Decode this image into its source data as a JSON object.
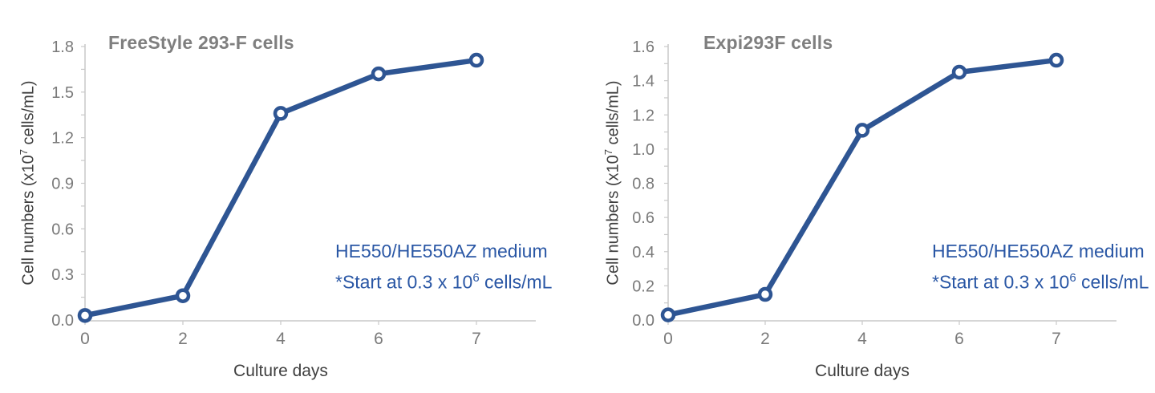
{
  "page": {
    "background": "#ffffff"
  },
  "colors": {
    "line_blue": "#2e5593",
    "marker_fill": "#ffffff",
    "annotation_blue": "#2a57a5",
    "title_gray": "#7f7f7f",
    "tick_label_gray": "#7a7a7a",
    "axis_text_dark": "#3f3f3f",
    "axis_line_gray": "#c9c9c9"
  },
  "chart_data": [
    {
      "type": "line",
      "title": "FreeStyle 293-F cells",
      "xlabel": "Culture days",
      "ylabel_prefix": "Cell numbers (x10",
      "ylabel_sup": "7",
      "ylabel_suffix": " cells/mL)",
      "categories": [
        "0",
        "2",
        "4",
        "6",
        "7"
      ],
      "series": [
        {
          "name": "FreeStyle 293-F cells",
          "values": [
            0.03,
            0.16,
            1.36,
            1.62,
            1.71
          ]
        }
      ],
      "ylim": [
        0,
        1.8
      ],
      "ytick_labels": [
        "0.0",
        "0.3",
        "0.6",
        "0.9",
        "1.2",
        "1.5",
        "1.8"
      ],
      "grid": false,
      "legend": "none",
      "marker": "open-circle",
      "annotation": {
        "line1": "HE550/HE550AZ medium",
        "line2_prefix": "*Start at 0.3 x 10",
        "line2_sup": "6",
        "line2_suffix": " cells/mL"
      }
    },
    {
      "type": "line",
      "title": "Expi293F cells",
      "xlabel": "Culture days",
      "ylabel_prefix": "Cell numbers (x10",
      "ylabel_sup": "7",
      "ylabel_suffix": " cells/mL)",
      "categories": [
        "0",
        "2",
        "4",
        "6",
        "7"
      ],
      "series": [
        {
          "name": "Expi293F cells",
          "values": [
            0.03,
            0.15,
            1.11,
            1.45,
            1.52
          ]
        }
      ],
      "ylim": [
        0,
        1.6
      ],
      "ytick_labels": [
        "0.0",
        "0.2",
        "0.4",
        "0.6",
        "0.8",
        "1.0",
        "1.2",
        "1.4",
        "1.6"
      ],
      "grid": false,
      "legend": "none",
      "marker": "open-circle",
      "annotation": {
        "line1": "HE550/HE550AZ medium",
        "line2_prefix": "*Start at 0.3 x 10",
        "line2_sup": "6",
        "line2_suffix": " cells/mL"
      }
    }
  ]
}
